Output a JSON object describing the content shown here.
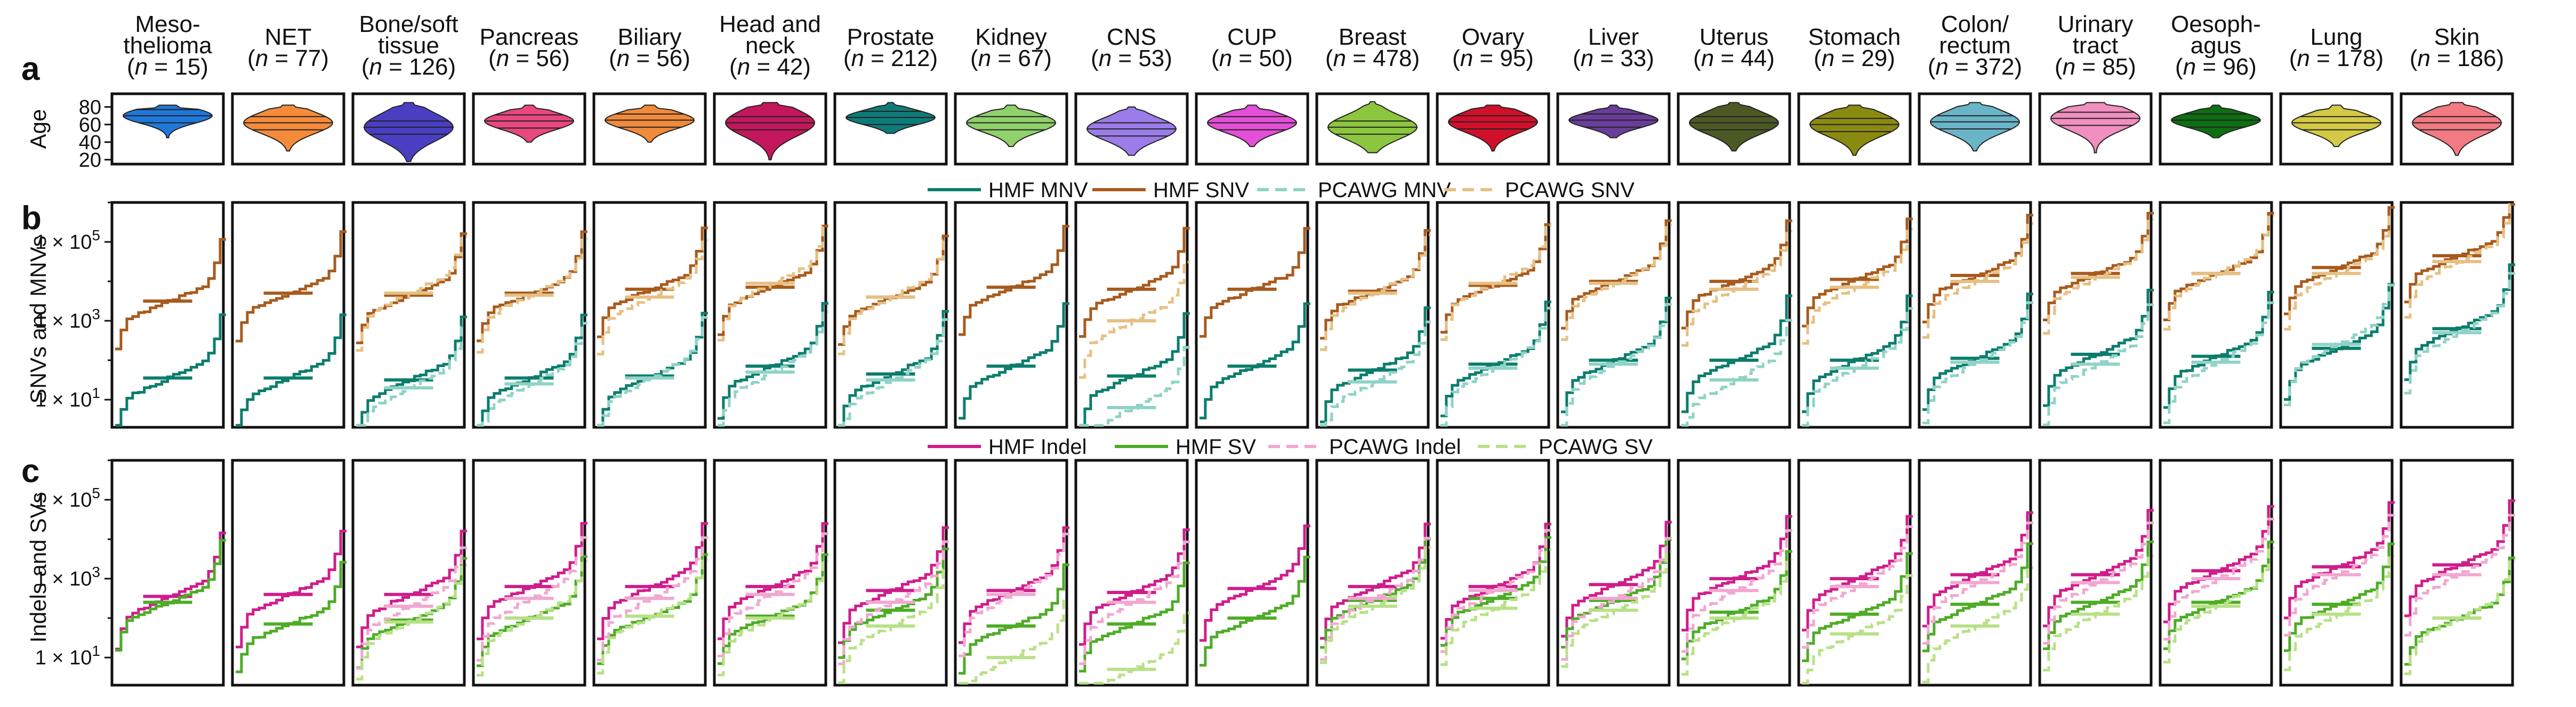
{
  "panels": {
    "a": {
      "letter": "a",
      "ylabel": "Age",
      "yticks": [
        20,
        40,
        60,
        80
      ],
      "ylim": [
        15,
        95
      ]
    },
    "b": {
      "letter": "b",
      "ylabel": "SNVs and MNVs",
      "yticks": [
        "1 × 10^1",
        "1 × 10^3",
        "1 × 10^5"
      ]
    },
    "c": {
      "letter": "c",
      "ylabel": "Indels and SVs",
      "yticks": [
        "1 × 10^1",
        "1 × 10^3",
        "1 × 10^5"
      ]
    }
  },
  "legend_b": [
    {
      "label": "HMF MNV",
      "color": "#0b7d6d",
      "style": "solid"
    },
    {
      "label": "HMF SNV",
      "color": "#a85a1c",
      "style": "solid"
    },
    {
      "label": "PCAWG MNV",
      "color": "#8fd3c6",
      "style": "dashed"
    },
    {
      "label": "PCAWG SNV",
      "color": "#e6c083",
      "style": "dashed"
    }
  ],
  "legend_c": [
    {
      "label": "HMF Indel",
      "color": "#d01c8b",
      "style": "solid"
    },
    {
      "label": "HMF SV",
      "color": "#4dac26",
      "style": "solid"
    },
    {
      "label": "PCAWG Indel",
      "color": "#f1a7d1",
      "style": "dashed"
    },
    {
      "label": "PCAWG SV",
      "color": "#b8e186",
      "style": "dashed"
    }
  ],
  "cancer_types": [
    {
      "name": [
        "Meso-",
        "thelioma"
      ],
      "n": "(n = 15)",
      "color": "#1f78d8",
      "age_median": 70,
      "age_range": [
        45,
        82
      ]
    },
    {
      "name": [
        "NET"
      ],
      "n": "(n = 77)",
      "color": "#f58b3a",
      "age_median": 62,
      "age_range": [
        30,
        82
      ]
    },
    {
      "name": [
        "Bone/soft",
        "tissue"
      ],
      "n": "(n = 126)",
      "color": "#4a3fc2",
      "age_median": 57,
      "age_range": [
        18,
        85
      ]
    },
    {
      "name": [
        "Pancreas"
      ],
      "n": "(n = 56)",
      "color": "#e8477f",
      "age_median": 64,
      "age_range": [
        40,
        82
      ]
    },
    {
      "name": [
        "Biliary"
      ],
      "n": "(n = 56)",
      "color": "#f08a3c",
      "age_median": 65,
      "age_range": [
        40,
        82
      ]
    },
    {
      "name": [
        "Head and",
        "neck"
      ],
      "n": "(n = 42)",
      "color": "#c2185b",
      "age_median": 62,
      "age_range": [
        20,
        85
      ]
    },
    {
      "name": [
        "Prostate"
      ],
      "n": "(n = 212)",
      "color": "#0f7b78",
      "age_median": 68,
      "age_range": [
        50,
        85
      ]
    },
    {
      "name": [
        "Kidney"
      ],
      "n": "(n = 67)",
      "color": "#8fd16a",
      "age_median": 62,
      "age_range": [
        35,
        82
      ]
    },
    {
      "name": [
        "CNS"
      ],
      "n": "(n = 53)",
      "color": "#9b7ce8",
      "age_median": 55,
      "age_range": [
        25,
        80
      ]
    },
    {
      "name": [
        "CUP"
      ],
      "n": "(n = 50)",
      "color": "#e34fd6",
      "age_median": 62,
      "age_range": [
        35,
        82
      ]
    },
    {
      "name": [
        "Breast"
      ],
      "n": "(n = 478)",
      "color": "#8cc63f",
      "age_median": 57,
      "age_range": [
        28,
        86
      ]
    },
    {
      "name": [
        "Ovary"
      ],
      "n": "(n = 95)",
      "color": "#d0102b",
      "age_median": 63,
      "age_range": [
        30,
        82
      ]
    },
    {
      "name": [
        "Liver"
      ],
      "n": "(n = 33)",
      "color": "#6a3d9a",
      "age_median": 65,
      "age_range": [
        45,
        82
      ]
    },
    {
      "name": [
        "Uterus"
      ],
      "n": "(n = 44)",
      "color": "#4b5a25",
      "age_median": 62,
      "age_range": [
        30,
        85
      ]
    },
    {
      "name": [
        "Stomach"
      ],
      "n": "(n = 29)",
      "color": "#8a8a10",
      "age_median": 60,
      "age_range": [
        25,
        82
      ]
    },
    {
      "name": [
        "Colon/",
        "rectum"
      ],
      "n": "(n = 372)",
      "color": "#6ab4c8",
      "age_median": 63,
      "age_range": [
        30,
        85
      ]
    },
    {
      "name": [
        "Urinary",
        "tract"
      ],
      "n": "(n = 85)",
      "color": "#f08fc0",
      "age_median": 67,
      "age_range": [
        28,
        85
      ]
    },
    {
      "name": [
        "Oesoph-",
        "agus"
      ],
      "n": "(n = 96)",
      "color": "#0e6e12",
      "age_median": 65,
      "age_range": [
        45,
        82
      ]
    },
    {
      "name": [
        "Lung"
      ],
      "n": "(n = 178)",
      "color": "#d4c944",
      "age_median": 62,
      "age_range": [
        35,
        82
      ]
    },
    {
      "name": [
        "Skin"
      ],
      "n": "(n = 186)",
      "color": "#f27a82",
      "age_median": 62,
      "age_range": [
        25,
        85
      ]
    }
  ],
  "chart_data": [
    {
      "type": "violin",
      "panel": "a",
      "ylabel": "Age",
      "ylim": [
        15,
        95
      ],
      "categories": [
        "Mesothelioma",
        "NET",
        "Bone/soft tissue",
        "Pancreas",
        "Biliary",
        "Head and neck",
        "Prostate",
        "Kidney",
        "CNS",
        "CUP",
        "Breast",
        "Ovary",
        "Liver",
        "Uterus",
        "Stomach",
        "Colon/rectum",
        "Urinary tract",
        "Oesophagus",
        "Lung",
        "Skin"
      ],
      "median_age": [
        70,
        62,
        57,
        64,
        65,
        62,
        68,
        62,
        55,
        62,
        57,
        63,
        65,
        62,
        60,
        63,
        67,
        65,
        62,
        62
      ]
    },
    {
      "type": "line",
      "panel": "b",
      "ylabel": "SNVs and MNVs",
      "yscale": "log",
      "ylim": [
        2,
        1000000
      ],
      "description_series_order": [
        "HMF MNV",
        "HMF SNV",
        "PCAWG MNV",
        "PCAWG SNV"
      ],
      "medians_log10": {
        "HMF SNV": [
          3.5,
          3.7,
          3.65,
          3.7,
          3.8,
          3.85,
          3.6,
          3.85,
          3.8,
          3.8,
          3.75,
          3.9,
          4.0,
          4.0,
          4.05,
          4.15,
          4.2,
          4.2,
          4.35,
          4.65
        ],
        "HMF MNV": [
          1.55,
          1.55,
          1.5,
          1.55,
          1.6,
          1.85,
          1.65,
          1.85,
          1.6,
          1.85,
          1.75,
          1.9,
          2.0,
          2.0,
          2.0,
          2.05,
          2.15,
          2.1,
          2.3,
          2.8
        ],
        "PCAWG SNV": [
          null,
          null,
          3.7,
          3.65,
          3.6,
          3.95,
          3.6,
          null,
          3.0,
          null,
          3.7,
          3.95,
          3.95,
          3.8,
          3.85,
          4.0,
          4.1,
          4.2,
          4.2,
          4.5
        ],
        "PCAWG MNV": [
          null,
          null,
          1.3,
          1.4,
          1.55,
          1.7,
          1.5,
          null,
          0.8,
          null,
          1.45,
          1.8,
          1.9,
          1.5,
          1.8,
          1.95,
          1.9,
          1.95,
          2.4,
          2.7
        ]
      }
    },
    {
      "type": "line",
      "panel": "c",
      "ylabel": "Indels and SVs",
      "yscale": "log",
      "ylim": [
        2,
        1000000
      ],
      "description_series_order": [
        "HMF Indel",
        "HMF SV",
        "PCAWG Indel",
        "PCAWG SV"
      ],
      "medians_log10": {
        "HMF Indel": [
          2.55,
          2.6,
          2.6,
          2.8,
          2.8,
          2.8,
          2.7,
          2.7,
          2.65,
          2.75,
          2.8,
          2.8,
          2.85,
          3.0,
          3.0,
          3.1,
          3.1,
          3.2,
          3.3,
          3.35
        ],
        "HMF SV": [
          2.4,
          1.85,
          1.95,
          2.0,
          2.05,
          2.05,
          2.2,
          1.8,
          1.85,
          2.0,
          2.45,
          2.5,
          2.45,
          2.15,
          2.1,
          2.35,
          2.4,
          2.4,
          2.35,
          2.0
        ],
        "PCAWG Indel": [
          null,
          null,
          2.3,
          2.5,
          2.5,
          2.6,
          2.4,
          2.6,
          2.4,
          null,
          2.5,
          2.7,
          2.5,
          2.7,
          2.8,
          2.9,
          2.9,
          3.0,
          3.1,
          3.1
        ],
        "PCAWG SV": [
          null,
          null,
          1.9,
          2.0,
          2.05,
          2.0,
          1.8,
          1.0,
          0.7,
          null,
          2.3,
          2.25,
          2.2,
          2.0,
          1.6,
          1.8,
          2.1,
          2.3,
          2.1,
          2.0
        ]
      }
    }
  ]
}
